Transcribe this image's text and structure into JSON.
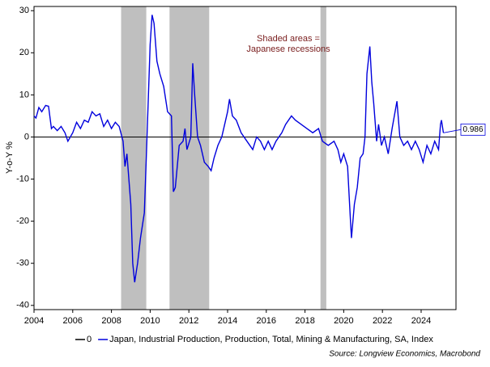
{
  "chart_data": {
    "type": "line",
    "ylabel": "Y-o-Y %",
    "annotation": [
      "Shaded areas =",
      "Japanese recessions"
    ],
    "source": "Source: Longview Economics, Macrobond",
    "recessions": [
      [
        2008.5,
        2009.8
      ],
      [
        2011.0,
        2013.05
      ],
      [
        2018.8,
        2019.1
      ]
    ],
    "recession_color": "#bfbfbf",
    "xlim": [
      2004,
      2025.8
    ],
    "xticks": [
      2004,
      2006,
      2008,
      2010,
      2012,
      2014,
      2016,
      2018,
      2020,
      2022,
      2024
    ],
    "ylim": [
      -41,
      31
    ],
    "yticks": [
      -40,
      -30,
      -20,
      -10,
      0,
      10,
      20,
      30
    ],
    "series": [
      {
        "name": "0",
        "color": "#000000",
        "x": [
          2004,
          2025.8
        ],
        "values": [
          0,
          0
        ]
      },
      {
        "name": "Japan, Industrial Production, Production, Total, Mining & Manufacturing, SA, Index",
        "color": "#0000dd",
        "x": [
          2004.0,
          2004.1,
          2004.25,
          2004.4,
          2004.6,
          2004.75,
          2004.9,
          2005.0,
          2005.2,
          2005.4,
          2005.6,
          2005.75,
          2006.0,
          2006.2,
          2006.4,
          2006.6,
          2006.8,
          2007.0,
          2007.2,
          2007.4,
          2007.6,
          2007.8,
          2008.0,
          2008.2,
          2008.4,
          2008.6,
          2008.7,
          2008.8,
          2009.0,
          2009.1,
          2009.2,
          2009.35,
          2009.5,
          2009.7,
          2009.8,
          2010.0,
          2010.1,
          2010.2,
          2010.35,
          2010.5,
          2010.7,
          2010.9,
          2011.1,
          2011.2,
          2011.3,
          2011.5,
          2011.7,
          2011.8,
          2011.9,
          2012.1,
          2012.2,
          2012.3,
          2012.45,
          2012.6,
          2012.8,
          2013.0,
          2013.15,
          2013.3,
          2013.5,
          2013.7,
          2013.85,
          2014.0,
          2014.1,
          2014.25,
          2014.45,
          2014.7,
          2015.0,
          2015.3,
          2015.5,
          2015.7,
          2015.9,
          2016.1,
          2016.3,
          2016.5,
          2016.8,
          2017.0,
          2017.3,
          2017.5,
          2017.8,
          2018.1,
          2018.4,
          2018.7,
          2018.9,
          2019.2,
          2019.5,
          2019.7,
          2019.85,
          2020.0,
          2020.2,
          2020.35,
          2020.4,
          2020.55,
          2020.7,
          2020.85,
          2021.0,
          2021.1,
          2021.2,
          2021.35,
          2021.45,
          2021.55,
          2021.7,
          2021.8,
          2021.95,
          2022.1,
          2022.3,
          2022.5,
          2022.75,
          2022.9,
          2023.1,
          2023.3,
          2023.5,
          2023.7,
          2023.9,
          2024.1,
          2024.3,
          2024.5,
          2024.7,
          2024.9,
          2025.0,
          2025.05,
          2025.15
        ],
        "values": [
          5,
          4.5,
          7,
          6,
          7.5,
          7.3,
          2,
          2.5,
          1.5,
          2.5,
          1,
          -1,
          1,
          3.5,
          2,
          4,
          3.5,
          6,
          5,
          5.5,
          2.5,
          4,
          2,
          3.5,
          2.5,
          -1,
          -7,
          -4,
          -16,
          -30,
          -34.5,
          -30,
          -24,
          -18,
          -5,
          22,
          29,
          27,
          18,
          15,
          12,
          6,
          5,
          -13,
          -12,
          -2,
          -1,
          2,
          -3,
          0,
          17.5,
          10,
          0,
          -2,
          -6,
          -7,
          -8,
          -5,
          -2,
          0,
          3,
          6,
          9,
          5,
          4,
          1,
          -1,
          -3,
          0,
          -1,
          -3,
          -1,
          -3,
          -1,
          1,
          3,
          5,
          4,
          3,
          2,
          1,
          2,
          -1,
          -2,
          -1,
          -3,
          -6,
          -4,
          -7,
          -20,
          -24,
          -16,
          -12,
          -5,
          -4,
          0,
          15,
          21.5,
          13,
          8,
          -1,
          3,
          -2,
          0,
          -4,
          2,
          8.5,
          0,
          -2,
          -1,
          -3,
          -1,
          -3,
          -6,
          -2,
          -4,
          -1,
          -3,
          3,
          4,
          0.986
        ]
      }
    ]
  }
}
